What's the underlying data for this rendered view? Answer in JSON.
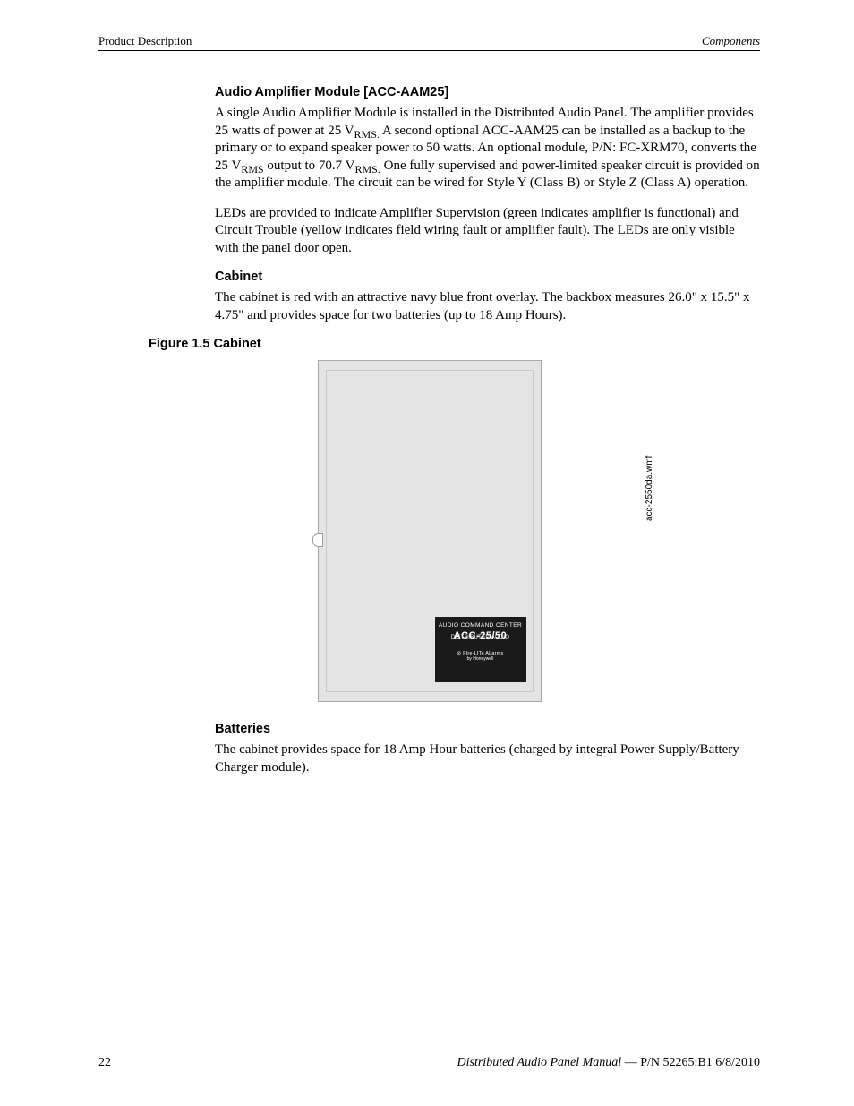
{
  "header": {
    "left": "Product Description",
    "right": "Components"
  },
  "sections": {
    "amp": {
      "title": "Audio Amplifier Module [ACC-AAM25]",
      "p1a": "A single Audio Amplifier Module is installed in the Distributed Audio Panel.  The amplifier provides 25 watts of power at 25 V",
      "p1_sub1": "RMS.",
      "p1b": "  A second optional ACC-AAM25 can be installed as a backup to the primary or to expand speaker power to 50 watts.  An optional module, P/N: FC-XRM70, converts the 25 V",
      "p1_sub2": "RMS",
      "p1c": " output to 70.7 V",
      "p1_sub3": "RMS.",
      "p1d": "  One fully supervised and power-limited speaker circuit is provided on the amplifier module.  The circuit can be wired for Style Y (Class B) or Style Z (Class A) operation.",
      "p2": "LEDs are provided to indicate Amplifier Supervision (green indicates amplifier is functional) and Circuit Trouble (yellow indicates field wiring fault or amplifier fault).  The LEDs are only visible with the panel door open."
    },
    "cabinet": {
      "title": "Cabinet",
      "p1": "The cabinet is red with an attractive navy blue front overlay.  The backbox measures 26.0\" x 15.5\" x 4.75\" and provides space for two batteries (up to 18 Amp Hours)."
    },
    "figure": {
      "caption": "Figure 1.5  Cabinet",
      "side_note": "acc-2550da.wmf",
      "plate": {
        "line1": "AUDIO COMMAND CENTER",
        "line2": "ACC-25/50",
        "line2b": "DISTRIBUTED AUDIO",
        "line3": "⊘ FIre·LITe ALarms",
        "line4": "by Honeywell"
      }
    },
    "batteries": {
      "title": "Batteries",
      "p1": "The cabinet provides space for 18 Amp Hour batteries (charged by integral Power Supply/Battery Charger module)."
    }
  },
  "footer": {
    "page": "22",
    "title": "Distributed Audio Panel Manual",
    "sep": " — ",
    "pn": "P/N 52265:B1  6/8/2010"
  }
}
